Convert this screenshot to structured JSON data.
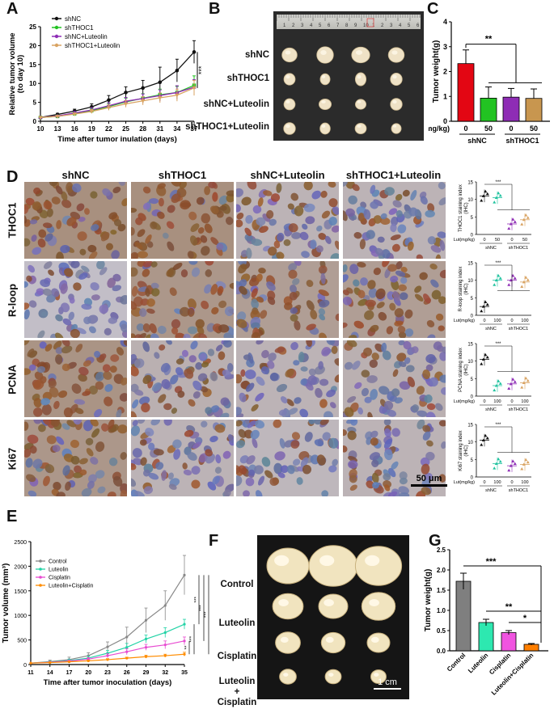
{
  "panels": {
    "A": "A",
    "B": "B",
    "C": "C",
    "D": "D",
    "E": "E",
    "F": "F",
    "G": "G"
  },
  "panelA": {
    "chart_data": {
      "type": "line",
      "xlabel": "Time after tumor inulation (days)",
      "ylabel": "Relative tumor volume\n(to day 10)",
      "ylabel_lines": [
        "Relative tumor volume",
        "(to day 10)"
      ],
      "x": [
        10,
        13,
        16,
        19,
        22,
        25,
        28,
        31,
        34,
        37
      ],
      "xlim": [
        10,
        37
      ],
      "ylim": [
        0,
        25
      ],
      "yticks": [
        0,
        5,
        10,
        15,
        20,
        25
      ],
      "significance": "***",
      "series": [
        {
          "name": "shNC",
          "color": "#111111",
          "values": [
            1,
            1.8,
            2.7,
            3.8,
            5.6,
            7.6,
            8.8,
            10.3,
            13.4,
            18.3
          ],
          "err": [
            0,
            0.3,
            0.5,
            0.8,
            1.2,
            1.5,
            2,
            4,
            3,
            3
          ]
        },
        {
          "name": "shTHOC1",
          "color": "#22c322",
          "values": [
            1,
            1.3,
            2,
            2.8,
            3.9,
            5.1,
            6.1,
            7,
            7.6,
            9.5
          ],
          "err": [
            0,
            0.2,
            0.4,
            0.6,
            0.8,
            1,
            1.2,
            1.5,
            1.6,
            2.5
          ]
        },
        {
          "name": "shNC+Luteolin",
          "color": "#8e2cb5",
          "values": [
            1,
            1.4,
            2.2,
            3,
            4.1,
            5.3,
            6,
            6.8,
            7.6,
            9
          ],
          "err": [
            0,
            0.2,
            0.4,
            0.6,
            0.8,
            1,
            1.2,
            1.5,
            1.8,
            2
          ]
        },
        {
          "name": "shTHOC1+Luteolin",
          "color": "#d9a362",
          "values": [
            1,
            1.3,
            1.9,
            2.6,
            3.6,
            4.6,
            5.4,
            6.2,
            6.9,
            8.8
          ],
          "err": [
            0,
            0.2,
            0.3,
            0.5,
            0.7,
            0.9,
            1.1,
            1.3,
            1.6,
            2
          ]
        }
      ]
    }
  },
  "panelB": {
    "ruler_numbers": [
      "1",
      "2",
      "3",
      "4",
      "5",
      "6",
      "7",
      "8",
      "9",
      "10",
      "1",
      "2",
      "3",
      "4",
      "5",
      "6"
    ],
    "rows": [
      "shNC",
      "shTHOC1",
      "shNC+Luteolin",
      "shTHOC1+Luteolin"
    ]
  },
  "panelC": {
    "chart_data": {
      "type": "bar",
      "ylabel": "Tumor weight(g)",
      "ylim": [
        0,
        4
      ],
      "yticks": [
        0,
        1,
        2,
        3,
        4
      ],
      "categories": [
        "0",
        "50",
        "0",
        "50"
      ],
      "values": [
        2.32,
        0.93,
        0.97,
        0.92
      ],
      "err": [
        0.55,
        0.45,
        0.35,
        0.38
      ],
      "colors": [
        "#e30613",
        "#22c322",
        "#8e2cb5",
        "#c8964f"
      ],
      "group_axis_label": "Lut(mg/kg)",
      "groups": [
        "shNC",
        "shTHOC1"
      ],
      "significance": "**"
    }
  },
  "panelD": {
    "columns": [
      "shNC",
      "shTHOC1",
      "shNC+Luteolin",
      "shTHOC1+Luteolin"
    ],
    "rows": [
      "THOC1",
      "R-loop",
      "PCNA",
      "Ki67"
    ],
    "scale_bar": "50 μm",
    "mini_charts": [
      {
        "type": "scatter",
        "ylabel": [
          "THOC1 staining index",
          "(IHC)"
        ],
        "ylim": [
          0,
          15
        ],
        "yticks": [
          0,
          5,
          10,
          15
        ],
        "doses": [
          "0",
          "50",
          "0",
          "50"
        ],
        "groups": [
          "shNC",
          "shTHOC1"
        ],
        "axis_label": "Lut(mg/kg)",
        "means": [
          11,
          10.5,
          3,
          4.2
        ],
        "significance": "***"
      },
      {
        "type": "scatter",
        "ylabel": [
          "R-loop staining index",
          "(IHC)"
        ],
        "ylim": [
          0,
          15
        ],
        "yticks": [
          0,
          5,
          10,
          15
        ],
        "doses": [
          "0",
          "100",
          "0",
          "100"
        ],
        "groups": [
          "shNC",
          "shTHOC1"
        ],
        "axis_label": "Lut(mg/kg)",
        "means": [
          2.5,
          10,
          10,
          9.5
        ],
        "significance": "***"
      },
      {
        "type": "scatter",
        "ylabel": [
          "PCNA staining index",
          "(IHC)"
        ],
        "ylim": [
          0,
          15
        ],
        "yticks": [
          0,
          5,
          10,
          15
        ],
        "doses": [
          "0",
          "100",
          "0",
          "100"
        ],
        "groups": [
          "shNC",
          "shTHOC1"
        ],
        "axis_label": "Lut(mg/kg)",
        "means": [
          10.5,
          3,
          3.5,
          3.8
        ],
        "significance": "***"
      },
      {
        "type": "scatter",
        "ylabel": [
          "Ki67 staining index",
          "(IHC)"
        ],
        "ylim": [
          0,
          15
        ],
        "yticks": [
          0,
          5,
          10,
          15
        ],
        "doses": [
          "0",
          "100",
          "0",
          "100"
        ],
        "groups": [
          "shNC",
          "shTHOC1"
        ],
        "axis_label": "Lut(mg/kg)",
        "means": [
          10.5,
          3.8,
          3.2,
          3.6
        ],
        "significance": "***"
      }
    ]
  },
  "panelE": {
    "chart_data": {
      "type": "line",
      "xlabel": "Time after tumor inoculation (days)",
      "ylabel": "Tumor volume (mm³)",
      "x": [
        11,
        14,
        17,
        20,
        23,
        26,
        29,
        32,
        35
      ],
      "xlim": [
        11,
        35
      ],
      "ylim": [
        0,
        2500
      ],
      "yticks": [
        0,
        500,
        1000,
        1500,
        2000,
        2500
      ],
      "series": [
        {
          "name": "Control",
          "color": "#888888",
          "values": [
            30,
            60,
            100,
            180,
            360,
            560,
            900,
            1200,
            1820
          ],
          "err": [
            0,
            30,
            50,
            60,
            100,
            200,
            250,
            300,
            400
          ]
        },
        {
          "name": "Luteolin",
          "color": "#22d3a6",
          "values": [
            30,
            50,
            80,
            130,
            230,
            350,
            520,
            650,
            820
          ],
          "err": [
            0,
            20,
            30,
            40,
            60,
            80,
            80,
            100,
            100
          ]
        },
        {
          "name": "Cisplatin",
          "color": "#e84bd1",
          "values": [
            30,
            45,
            70,
            110,
            180,
            260,
            350,
            400,
            480
          ],
          "err": [
            0,
            15,
            20,
            30,
            40,
            60,
            60,
            80,
            80
          ]
        },
        {
          "name": "Luteolin+Cisplatin",
          "color": "#ff8c00",
          "values": [
            30,
            40,
            55,
            75,
            100,
            130,
            160,
            180,
            210
          ],
          "err": [
            0,
            10,
            10,
            15,
            20,
            20,
            30,
            30,
            40
          ]
        }
      ],
      "significance": [
        "***",
        "***",
        "***",
        "***",
        "**"
      ]
    }
  },
  "panelF": {
    "rows": [
      "Control",
      "Luteolin",
      "Cisplatin",
      "Luteolin\n+\nCisplatin"
    ],
    "row_lines": [
      [
        "Control"
      ],
      [
        "Luteolin"
      ],
      [
        "Cisplatin"
      ],
      [
        "Luteolin",
        "+",
        "Cisplatin"
      ]
    ],
    "scale_bar": "1 cm"
  },
  "panelG": {
    "chart_data": {
      "type": "bar",
      "ylabel": "Tumor weight(g)",
      "ylim": [
        0,
        2.5
      ],
      "yticks": [
        0.0,
        0.5,
        1.0,
        1.5,
        2.0,
        2.5
      ],
      "categories": [
        "Control",
        "Luteolin",
        "Cisplatin",
        "Luteolin+Cisplatin"
      ],
      "values": [
        1.72,
        0.7,
        0.45,
        0.16
      ],
      "err": [
        0.2,
        0.08,
        0.05,
        0.02
      ],
      "colors": [
        "#7f7f7f",
        "#2de8b0",
        "#f054e0",
        "#ff7f00"
      ],
      "significance": [
        "***",
        "**",
        "*"
      ]
    }
  }
}
